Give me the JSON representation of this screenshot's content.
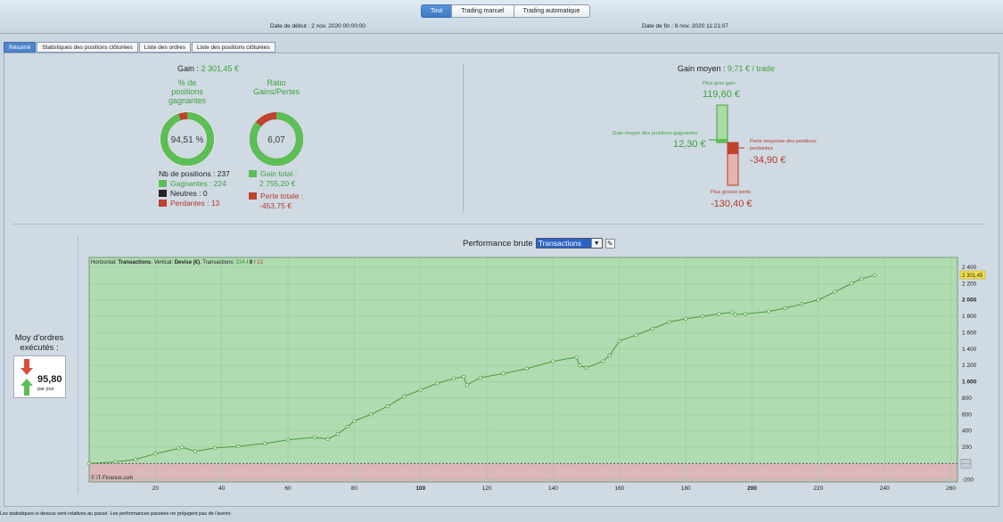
{
  "topbar": {
    "tabs": [
      {
        "label": "Tout",
        "active": true
      },
      {
        "label": "Trading manuel",
        "active": false
      },
      {
        "label": "Trading automatique",
        "active": false
      }
    ],
    "date_start": "Date de début : 2 nov. 2020 00:00:00",
    "date_end": "Date de fin : 8 nov. 2020 11:21:07"
  },
  "subtabs": [
    {
      "label": "Résumé",
      "active": true
    },
    {
      "label": "Statistiques des positions clôturées",
      "active": false
    },
    {
      "label": "Liste des ordres",
      "active": false
    },
    {
      "label": "Liste des positions clôturées",
      "active": false
    }
  ],
  "summary": {
    "gain_label": "Gain : ",
    "gain_value": "2 301,45 €",
    "pct_title_1": "% de",
    "pct_title_2": "positions",
    "pct_title_3": "gagnantes",
    "pct_value": "94,51 %",
    "pct_fraction": 0.9451,
    "ratio_title_1": "Ratio",
    "ratio_title_2": "Gains/Pertes",
    "ratio_value": "6,07",
    "ratio_fraction": 0.859,
    "nb_positions": "Nb de positions : 237",
    "gagnantes": "Gagnantes : 224",
    "neutres": "Neutres : 0",
    "perdantes": "Perdantes : 13",
    "gain_total_label": "Gain total :",
    "gain_total_value": "2 755,20 €",
    "perte_totale_label": "Perte totale :",
    "perte_totale_value": "-453,75 €",
    "colors": {
      "green": "#5bbf55",
      "red": "#c0432f"
    }
  },
  "gain_moyen": {
    "label": "Gain moyen : ",
    "value": "9,71 € / trade",
    "plus_gros_gain_label": "Plus gros gain",
    "plus_gros_gain_value": "119,60 €",
    "gain_moyen_gagnantes_label": "Gain moyen des positions gagnantes",
    "gain_moyen_gagnantes_value": "12,30 €",
    "perte_moyenne_label_1": "Perte moyenne des positions",
    "perte_moyenne_label_2": "perdantes",
    "perte_moyenne_value": "-34,90 €",
    "plus_grosse_perte_label": "Plus grosse perte",
    "plus_grosse_perte_value": "-130,40 €"
  },
  "performance": {
    "title": "Performance brute",
    "select_value": "Transactions",
    "moy_label_1": "Moy d'ordres",
    "moy_label_2": "exécutés :",
    "moy_value": "95,80",
    "moy_unit": "par jour"
  },
  "chart_data": {
    "type": "line",
    "header_prefix": "Horizontal: ",
    "header_h": "Transactions",
    "header_mid": ", Vertical: ",
    "header_v": "Devise (€)",
    "header_tx": ", Transactions: ",
    "header_win": "224",
    "header_sep1": " / ",
    "header_neu": "0",
    "header_sep2": " / ",
    "header_los": "13",
    "copyright": "© IT-Finance.com",
    "last_value_label": "2 301,45",
    "x_ticks": [
      {
        "v": 20,
        "label": "20",
        "bold": false
      },
      {
        "v": 40,
        "label": "40",
        "bold": false
      },
      {
        "v": 60,
        "label": "60",
        "bold": false
      },
      {
        "v": 80,
        "label": "80",
        "bold": false
      },
      {
        "v": 100,
        "label": "100",
        "bold": true
      },
      {
        "v": 120,
        "label": "120",
        "bold": false
      },
      {
        "v": 140,
        "label": "140",
        "bold": false
      },
      {
        "v": 160,
        "label": "160",
        "bold": false
      },
      {
        "v": 180,
        "label": "180",
        "bold": false
      },
      {
        "v": 200,
        "label": "200",
        "bold": true
      },
      {
        "v": 220,
        "label": "220",
        "bold": false
      },
      {
        "v": 240,
        "label": "240",
        "bold": false
      },
      {
        "v": 260,
        "label": "260",
        "bold": false
      }
    ],
    "y_ticks": [
      {
        "v": 2400,
        "label": "2 400",
        "bold": false
      },
      {
        "v": 2200,
        "label": "2 200",
        "bold": false
      },
      {
        "v": 2000,
        "label": "2 000",
        "bold": true
      },
      {
        "v": 1800,
        "label": "1 800",
        "bold": false
      },
      {
        "v": 1600,
        "label": "1 600",
        "bold": false
      },
      {
        "v": 1400,
        "label": "1 400",
        "bold": false
      },
      {
        "v": 1200,
        "label": "1 200",
        "bold": false
      },
      {
        "v": 1000,
        "label": "1 000",
        "bold": true
      },
      {
        "v": 800,
        "label": "800",
        "bold": false
      },
      {
        "v": 600,
        "label": "600",
        "bold": false
      },
      {
        "v": 400,
        "label": "400",
        "bold": false
      },
      {
        "v": 200,
        "label": "200",
        "bold": false
      },
      {
        "v": -200,
        "label": "-200",
        "bold": false
      }
    ],
    "xlim": [
      0,
      262
    ],
    "ylim": [
      -225,
      2520
    ],
    "x": [
      0,
      8,
      14,
      20,
      27,
      28,
      32,
      38,
      45,
      53,
      60,
      68,
      72,
      75,
      78,
      80,
      85,
      90,
      95,
      100,
      105,
      110,
      113,
      114,
      118,
      125,
      132,
      140,
      147,
      148,
      150,
      155,
      157,
      160,
      165,
      170,
      175,
      180,
      185,
      190,
      194,
      195,
      198,
      205,
      210,
      215,
      220,
      225,
      230,
      233,
      237
    ],
    "y": [
      0,
      20,
      50,
      120,
      185,
      200,
      150,
      190,
      210,
      245,
      290,
      320,
      300,
      360,
      450,
      520,
      600,
      700,
      820,
      900,
      980,
      1040,
      1060,
      960,
      1050,
      1100,
      1160,
      1250,
      1300,
      1200,
      1170,
      1250,
      1320,
      1500,
      1570,
      1650,
      1730,
      1770,
      1800,
      1830,
      1850,
      1820,
      1830,
      1860,
      1900,
      1950,
      2000,
      2100,
      2200,
      2260,
      2301.45
    ],
    "colors": {
      "positive": "#b1dbb1",
      "negative": "#dbb7bb",
      "line": "#4a9a3c",
      "grid": "#96c896"
    }
  },
  "footer": "Les statistiques ci-dessus sont relatives au passé. Les performances passées ne préjugent pas de l'avenir."
}
